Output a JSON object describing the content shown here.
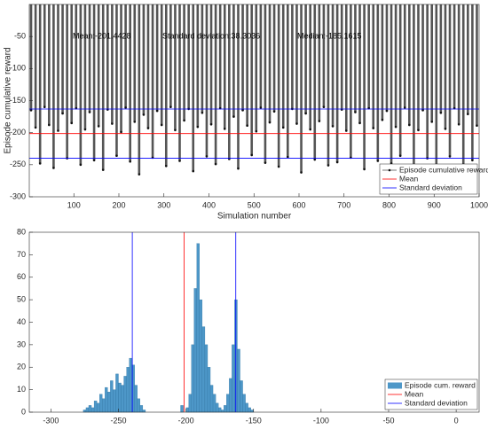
{
  "chart_data": [
    {
      "type": "stem",
      "xlabel": "Simulation number",
      "ylabel": "Episode cumulative reward",
      "annotations": [
        "Mean:-201.4428",
        "Standard deviation:38.3036",
        "Median:-185.1615"
      ],
      "xlim": [
        1,
        1000
      ],
      "xticks": [
        100,
        200,
        300,
        400,
        500,
        600,
        700,
        800,
        900,
        1000
      ],
      "ylim": [
        -300,
        0
      ],
      "yticks": [
        -300,
        -250,
        -200,
        -150,
        -100,
        -50
      ],
      "x": [
        5,
        15,
        25,
        35,
        45,
        55,
        65,
        75,
        85,
        95,
        105,
        115,
        125,
        135,
        145,
        155,
        165,
        175,
        185,
        195,
        205,
        215,
        225,
        235,
        245,
        255,
        265,
        275,
        285,
        295,
        305,
        315,
        325,
        335,
        345,
        355,
        365,
        375,
        385,
        395,
        405,
        415,
        425,
        435,
        445,
        455,
        465,
        475,
        485,
        495,
        505,
        515,
        525,
        535,
        545,
        555,
        565,
        575,
        585,
        595,
        605,
        615,
        625,
        635,
        645,
        655,
        665,
        675,
        685,
        695,
        705,
        715,
        725,
        735,
        745,
        755,
        765,
        775,
        785,
        795,
        805,
        815,
        825,
        835,
        845,
        855,
        865,
        875,
        885,
        895,
        905,
        915,
        925,
        935,
        945,
        955,
        965,
        975,
        985,
        995
      ],
      "series": [
        {
          "name": "Episode cumulative reward",
          "color": "#555555",
          "values": [
            -165,
            -192,
            -248,
            -160,
            -188,
            -255,
            -197,
            -170,
            -240,
            -185,
            -162,
            -250,
            -195,
            -168,
            -243,
            -190,
            -258,
            -164,
            -186,
            -236,
            -199,
            -161,
            -245,
            -183,
            -265,
            -172,
            -193,
            -239,
            -166,
            -188,
            -252,
            -160,
            -196,
            -244,
            -181,
            -163,
            -260,
            -191,
            -169,
            -237,
            -187,
            -249,
            -162,
            -194,
            -241,
            -175,
            -256,
            -165,
            -189,
            -235,
            -198,
            -161,
            -247,
            -184,
            -167,
            -253,
            -192,
            -238,
            -163,
            -186,
            -262,
            -170,
            -195,
            -242,
            -182,
            -160,
            -251,
            -190,
            -246,
            -164,
            -197,
            -239,
            -168,
            -185,
            -257,
            -162,
            -193,
            -244,
            -180,
            -166,
            -248,
            -191,
            -236,
            -161,
            -188,
            -254,
            -196,
            -165,
            -240,
            -183,
            -259,
            -169,
            -194,
            -237,
            -162,
            -187,
            -250,
            -171,
            -243,
            -189
          ]
        }
      ],
      "reference_lines": [
        {
          "name": "Mean",
          "color": "#ff0000",
          "values": [
            -201.4428
          ]
        },
        {
          "name": "Standard deviation",
          "color": "#0000ff",
          "values": [
            -163.1392,
            -239.7464
          ]
        }
      ]
    },
    {
      "type": "histogram",
      "xlim": [
        -316,
        17
      ],
      "xticks": [
        -300,
        -250,
        -200,
        -150,
        -100,
        -50,
        0
      ],
      "ylim": [
        0,
        80
      ],
      "yticks": [
        0,
        10,
        20,
        30,
        40,
        50,
        60,
        70,
        80
      ],
      "bins": [
        -276,
        -274,
        -272,
        -270,
        -268,
        -266,
        -264,
        -262,
        -260,
        -258,
        -256,
        -254,
        -252,
        -250,
        -248,
        -246,
        -244,
        -242,
        -240,
        -238,
        -236,
        -234,
        -232,
        -230,
        -228,
        -226,
        -224,
        -222,
        -220,
        -218,
        -216,
        -214,
        -212,
        -210,
        -208,
        -206,
        -204,
        -202,
        -200,
        -198,
        -196,
        -194,
        -192,
        -190,
        -188,
        -186,
        -184,
        -182,
        -180,
        -178,
        -176,
        -174,
        -172,
        -170,
        -168,
        -166,
        -164,
        -162,
        -160,
        -158,
        -156,
        -154,
        -152,
        -150
      ],
      "series": [
        {
          "name": "Episode cum. reward",
          "color": "#4d97c8",
          "values": [
            1,
            2,
            3,
            2,
            5,
            4,
            8,
            6,
            11,
            9,
            14,
            10,
            17,
            13,
            12,
            16,
            20,
            24,
            21,
            12,
            6,
            3,
            1,
            0,
            0,
            0,
            0,
            0,
            0,
            0,
            0,
            0,
            0,
            0,
            0,
            0,
            3,
            0,
            2,
            8,
            30,
            55,
            75,
            50,
            38,
            30,
            20,
            12,
            8,
            4,
            2,
            1,
            3,
            8,
            15,
            30,
            50,
            28,
            14,
            8,
            4,
            2,
            1
          ]
        }
      ],
      "reference_lines": [
        {
          "name": "Mean",
          "color": "#ff0000",
          "values": [
            -201.4428
          ]
        },
        {
          "name": "Standard deviation",
          "color": "#0000ff",
          "values": [
            -163.1392,
            -239.7464
          ]
        }
      ]
    }
  ]
}
